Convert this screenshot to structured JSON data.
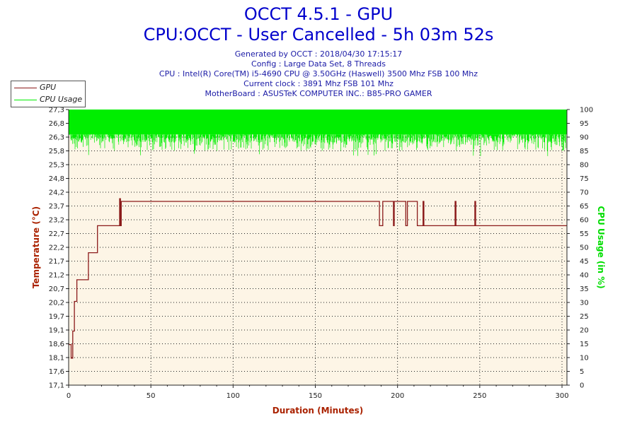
{
  "header": {
    "title": "OCCT 4.5.1 - GPU",
    "subtitle": "CPU:OCCT - User Cancelled - 5h 03m 52s",
    "info_lines": [
      "Generated by OCCT : 2018/04/30 17:15:17",
      "Config : Large Data Set, 8 Threads",
      "CPU : Intel(R) Core(TM) i5-4690 CPU @ 3.50GHz (Haswell) 3500 Mhz FSB 100 Mhz",
      "Current clock : 3891 Mhz FSB 101 Mhz",
      "MotherBoard : ASUSTeK COMPUTER INC.: B85-PRO GAMER"
    ]
  },
  "legend": {
    "gpu_label": "GPU",
    "cpu_label": "CPU Usage"
  },
  "chart_data": {
    "type": "line",
    "xlabel": "Duration (Minutes)",
    "ylabel_left": "Temperature (°C)",
    "ylabel_right": "CPU Usage (in %)",
    "xlim": [
      0,
      303
    ],
    "ylim_left": [
      17.1,
      27.3
    ],
    "ylim_right": [
      0,
      100
    ],
    "x_ticks": [
      "0",
      "50",
      "100",
      "150",
      "200",
      "250",
      "300"
    ],
    "y_left_ticks": [
      "17,1",
      "17,6",
      "18,1",
      "18,6",
      "19,1",
      "19,7",
      "20,2",
      "20,7",
      "21,2",
      "21,7",
      "22,2",
      "22,7",
      "23,2",
      "23,7",
      "24,2",
      "24,8",
      "25,3",
      "25,8",
      "26,3",
      "26,8",
      "27,3"
    ],
    "y_right_ticks": [
      "0",
      "5",
      "10",
      "15",
      "20",
      "25",
      "30",
      "35",
      "40",
      "45",
      "50",
      "55",
      "60",
      "65",
      "70",
      "75",
      "80",
      "85",
      "90",
      "95",
      "100"
    ],
    "grid": true,
    "legend_position": "top-left",
    "colors": {
      "gpu": "#8b1a1a",
      "cpu": "#00ee00",
      "plot_bg": "#fdf5e6"
    },
    "series": [
      {
        "name": "GPU",
        "axis": "left",
        "step": true,
        "x": [
          0,
          1.5,
          1.5,
          2.5,
          2.5,
          3.5,
          3.5,
          5,
          5,
          12,
          12,
          17.5,
          17.5,
          31,
          31,
          31.5,
          31.5,
          32,
          32,
          189,
          189,
          191,
          191,
          197.5,
          197.5,
          198,
          198,
          205,
          205,
          206,
          206,
          212,
          212,
          215.5,
          215.5,
          216,
          216,
          235,
          235,
          235.5,
          235.5,
          247,
          247,
          247.5,
          247.5,
          303
        ],
        "y": [
          18.6,
          18.6,
          18.1,
          18.1,
          19.1,
          19.1,
          20.2,
          20.2,
          21,
          21,
          22,
          22,
          23,
          23,
          24,
          24,
          23,
          23,
          23.9,
          23.9,
          23,
          23,
          23.9,
          23.9,
          23,
          23,
          23.9,
          23.9,
          23,
          23,
          23.9,
          23.9,
          23,
          23,
          23.9,
          23.9,
          23,
          23,
          23.9,
          23.9,
          23,
          23,
          23.9,
          23.9,
          23,
          23
        ]
      },
      {
        "name": "CPU Usage",
        "axis": "right",
        "band": true,
        "x_range": [
          0,
          303
        ],
        "y_band": [
          85,
          100
        ],
        "y_dips": [
          83,
          84
        ]
      }
    ]
  }
}
